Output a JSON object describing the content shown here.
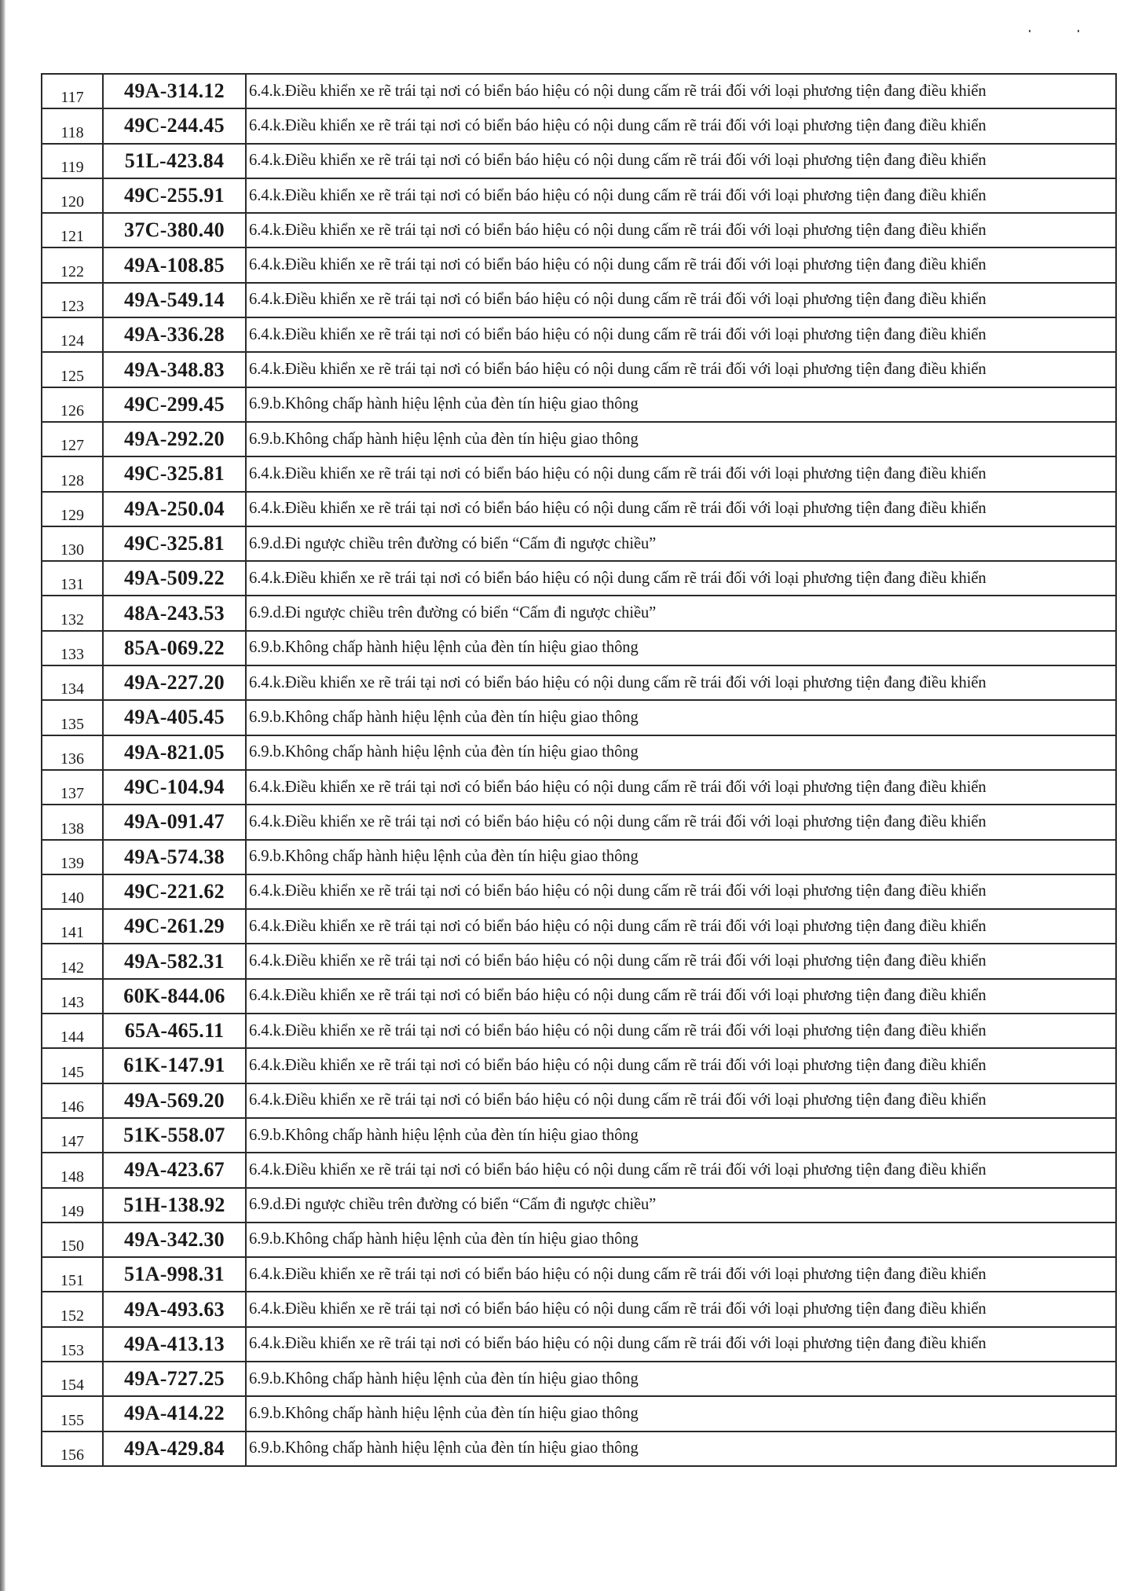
{
  "table": {
    "rows": [
      {
        "no": "117",
        "plate": "49A-314.12",
        "violation": "6.4.k.Điều khiển xe rẽ trái tại nơi có biển báo hiệu có nội dung cấm rẽ trái đối với loại phương tiện đang điều khiển"
      },
      {
        "no": "118",
        "plate": "49C-244.45",
        "violation": "6.4.k.Điều khiển xe rẽ trái tại nơi có biển báo hiệu có nội dung cấm rẽ trái đối với loại phương tiện đang điều khiển"
      },
      {
        "no": "119",
        "plate": "51L-423.84",
        "violation": "6.4.k.Điều khiển xe rẽ trái tại nơi có biển báo hiệu có nội dung cấm rẽ trái đối với loại phương tiện đang điều khiển"
      },
      {
        "no": "120",
        "plate": "49C-255.91",
        "violation": "6.4.k.Điều khiển xe rẽ trái tại nơi có biển báo hiệu có nội dung cấm rẽ trái đối với loại phương tiện đang điều khiển"
      },
      {
        "no": "121",
        "plate": "37C-380.40",
        "violation": "6.4.k.Điều khiển xe rẽ trái tại nơi có biển báo hiệu có nội dung cấm rẽ trái đối với loại phương tiện đang điều khiển"
      },
      {
        "no": "122",
        "plate": "49A-108.85",
        "violation": "6.4.k.Điều khiển xe rẽ trái tại nơi có biển báo hiệu có nội dung cấm rẽ trái đối với loại phương tiện đang điều khiển"
      },
      {
        "no": "123",
        "plate": "49A-549.14",
        "violation": "6.4.k.Điều khiển xe rẽ trái tại nơi có biển báo hiệu có nội dung cấm rẽ trái đối với loại phương tiện đang điều khiển"
      },
      {
        "no": "124",
        "plate": "49A-336.28",
        "violation": "6.4.k.Điều khiển xe rẽ trái tại nơi có biển báo hiệu có nội dung cấm rẽ trái đối với loại phương tiện đang điều khiển"
      },
      {
        "no": "125",
        "plate": "49A-348.83",
        "violation": "6.4.k.Điều khiển xe rẽ trái tại nơi có biển báo hiệu có nội dung cấm rẽ trái đối với loại phương tiện đang điều khiển"
      },
      {
        "no": "126",
        "plate": "49C-299.45",
        "violation": "6.9.b.Không chấp hành hiệu lệnh của đèn tín hiệu giao thông"
      },
      {
        "no": "127",
        "plate": "49A-292.20",
        "violation": "6.9.b.Không chấp hành hiệu lệnh của đèn tín hiệu giao thông"
      },
      {
        "no": "128",
        "plate": "49C-325.81",
        "violation": "6.4.k.Điều khiển xe rẽ trái tại nơi có biển báo hiệu có nội dung cấm rẽ trái đối với loại phương tiện đang điều khiển"
      },
      {
        "no": "129",
        "plate": "49A-250.04",
        "violation": "6.4.k.Điều khiển xe rẽ trái tại nơi có biển báo hiệu có nội dung cấm rẽ trái đối với loại phương tiện đang điều khiển"
      },
      {
        "no": "130",
        "plate": "49C-325.81",
        "violation": "6.9.d.Đi ngược chiều trên đường có biển “Cấm đi ngược chiều”"
      },
      {
        "no": "131",
        "plate": "49A-509.22",
        "violation": "6.4.k.Điều khiển xe rẽ trái tại nơi có biển báo hiệu có nội dung cấm rẽ trái đối với loại phương tiện đang điều khiển"
      },
      {
        "no": "132",
        "plate": "48A-243.53",
        "violation": "6.9.d.Đi ngược chiều trên đường có biển “Cấm đi ngược chiều”"
      },
      {
        "no": "133",
        "plate": "85A-069.22",
        "violation": "6.9.b.Không chấp hành hiệu lệnh của đèn tín hiệu giao thông"
      },
      {
        "no": "134",
        "plate": "49A-227.20",
        "violation": "6.4.k.Điều khiển xe rẽ trái tại nơi có biển báo hiệu có nội dung cấm rẽ trái đối với loại phương tiện đang điều khiển"
      },
      {
        "no": "135",
        "plate": "49A-405.45",
        "violation": "6.9.b.Không chấp hành hiệu lệnh của đèn tín hiệu giao thông"
      },
      {
        "no": "136",
        "plate": "49A-821.05",
        "violation": "6.9.b.Không chấp hành hiệu lệnh của đèn tín hiệu giao thông"
      },
      {
        "no": "137",
        "plate": "49C-104.94",
        "violation": "6.4.k.Điều khiển xe rẽ trái tại nơi có biển báo hiệu có nội dung cấm rẽ trái đối với loại phương tiện đang điều khiển"
      },
      {
        "no": "138",
        "plate": "49A-091.47",
        "violation": "6.4.k.Điều khiển xe rẽ trái tại nơi có biển báo hiệu có nội dung cấm rẽ trái đối với loại phương tiện đang điều khiển"
      },
      {
        "no": "139",
        "plate": "49A-574.38",
        "violation": "6.9.b.Không chấp hành hiệu lệnh của đèn tín hiệu giao thông"
      },
      {
        "no": "140",
        "plate": "49C-221.62",
        "violation": "6.4.k.Điều khiển xe rẽ trái tại nơi có biển báo hiệu có nội dung cấm rẽ trái đối với loại phương tiện đang điều khiển"
      },
      {
        "no": "141",
        "plate": "49C-261.29",
        "violation": "6.4.k.Điều khiển xe rẽ trái tại nơi có biển báo hiệu có nội dung cấm rẽ trái đối với loại phương tiện đang điều khiển"
      },
      {
        "no": "142",
        "plate": "49A-582.31",
        "violation": "6.4.k.Điều khiển xe rẽ trái tại nơi có biển báo hiệu có nội dung cấm rẽ trái đối với loại phương tiện đang điều khiển"
      },
      {
        "no": "143",
        "plate": "60K-844.06",
        "violation": "6.4.k.Điều khiển xe rẽ trái tại nơi có biển báo hiệu có nội dung cấm rẽ trái đối với loại phương tiện đang điều khiển"
      },
      {
        "no": "144",
        "plate": "65A-465.11",
        "violation": "6.4.k.Điều khiển xe rẽ trái tại nơi có biển báo hiệu có nội dung cấm rẽ trái đối với loại phương tiện đang điều khiển"
      },
      {
        "no": "145",
        "plate": "61K-147.91",
        "violation": "6.4.k.Điều khiển xe rẽ trái tại nơi có biển báo hiệu có nội dung cấm rẽ trái đối với loại phương tiện đang điều khiển"
      },
      {
        "no": "146",
        "plate": "49A-569.20",
        "violation": "6.4.k.Điều khiển xe rẽ trái tại nơi có biển báo hiệu có nội dung cấm rẽ trái đối với loại phương tiện đang điều khiển"
      },
      {
        "no": "147",
        "plate": "51K-558.07",
        "violation": "6.9.b.Không chấp hành hiệu lệnh của đèn tín hiệu giao thông"
      },
      {
        "no": "148",
        "plate": "49A-423.67",
        "violation": "6.4.k.Điều khiển xe rẽ trái tại nơi có biển báo hiệu có nội dung cấm rẽ trái đối với loại phương tiện đang điều khiển"
      },
      {
        "no": "149",
        "plate": "51H-138.92",
        "violation": "6.9.d.Đi ngược chiều trên đường có biển “Cấm đi ngược chiều”"
      },
      {
        "no": "150",
        "plate": "49A-342.30",
        "violation": "6.9.b.Không chấp hành hiệu lệnh của đèn tín hiệu giao thông"
      },
      {
        "no": "151",
        "plate": "51A-998.31",
        "violation": "6.4.k.Điều khiển xe rẽ trái tại nơi có biển báo hiệu có nội dung cấm rẽ trái đối với loại phương tiện đang điều khiển"
      },
      {
        "no": "152",
        "plate": "49A-493.63",
        "violation": "6.4.k.Điều khiển xe rẽ trái tại nơi có biển báo hiệu có nội dung cấm rẽ trái đối với loại phương tiện đang điều khiển"
      },
      {
        "no": "153",
        "plate": "49A-413.13",
        "violation": "6.4.k.Điều khiển xe rẽ trái tại nơi có biển báo hiệu có nội dung cấm rẽ trái đối với loại phương tiện đang điều khiển"
      },
      {
        "no": "154",
        "plate": "49A-727.25",
        "violation": "6.9.b.Không chấp hành hiệu lệnh của đèn tín hiệu giao thông"
      },
      {
        "no": "155",
        "plate": "49A-414.22",
        "violation": "6.9.b.Không chấp hành hiệu lệnh của đèn tín hiệu giao thông"
      },
      {
        "no": "156",
        "plate": "49A-429.84",
        "violation": "6.9.b.Không chấp hành hiệu lệnh của đèn tín hiệu giao thông"
      }
    ]
  }
}
